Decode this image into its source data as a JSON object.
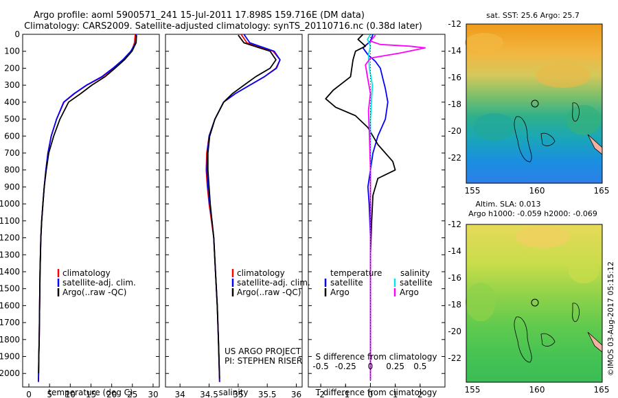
{
  "header": {
    "line1": "Argo profile: aoml 5900571_241 15-Jul-2011 17.898S 159.716E (DM data)",
    "line2": "Climatology: CARS2009. Satellite-adjusted climatology: synTS_20110716.nc (0.38d later)"
  },
  "colors": {
    "climatology": "#ff0000",
    "satellite": "#0000ff",
    "argo": "#000000",
    "salinity_satellite": "#00e5ee",
    "salinity_argo": "#ff00ff"
  },
  "chart_data": [
    {
      "type": "line",
      "title": "temperature profile",
      "xlabel": "temperature (deg C)",
      "ylabel": "pressure",
      "xlim": [
        -1.5,
        31.5
      ],
      "ylim": [
        2080,
        0
      ],
      "xticks": [
        0,
        5,
        10,
        15,
        20,
        25,
        30
      ],
      "yticks": [
        0,
        100,
        200,
        300,
        400,
        500,
        600,
        700,
        800,
        900,
        1000,
        1100,
        1200,
        1300,
        1400,
        1500,
        1600,
        1700,
        1800,
        1900,
        2000
      ],
      "legend": [
        "climatology",
        "satellite-adj. clim.",
        "Argo(..raw -QC)"
      ],
      "series": [
        {
          "name": "climatology",
          "x": [
            25.7,
            25.5,
            24.8,
            23.0,
            20.5,
            17.8,
            14.0,
            11.0,
            8.5,
            6.7,
            5.4,
            4.6,
            4.1,
            3.7,
            3.4,
            3.1,
            2.9,
            2.7,
            2.6,
            2.5,
            2.4,
            2.35,
            2.3
          ],
          "y": [
            0,
            50,
            100,
            150,
            200,
            250,
            300,
            350,
            400,
            500,
            600,
            700,
            800,
            900,
            1000,
            1100,
            1200,
            1400,
            1600,
            1800,
            1900,
            2000,
            2050
          ]
        },
        {
          "name": "satellite-adj. clim.",
          "x": [
            25.9,
            25.8,
            24.6,
            22.7,
            20.3,
            17.6,
            13.9,
            10.9,
            8.4,
            6.7,
            5.4,
            4.6,
            4.1,
            3.7,
            3.4,
            3.1,
            2.9,
            2.7,
            2.6,
            2.5,
            2.4,
            2.35,
            2.3
          ],
          "y": [
            0,
            50,
            100,
            150,
            200,
            250,
            300,
            350,
            400,
            500,
            600,
            700,
            800,
            900,
            1000,
            1100,
            1200,
            1400,
            1600,
            1800,
            1900,
            2000,
            2050
          ]
        },
        {
          "name": "Argo(..raw -QC)",
          "x": [
            26.0,
            25.9,
            24.9,
            23.1,
            20.8,
            18.4,
            15.2,
            12.5,
            9.6,
            7.5,
            6.0,
            4.8,
            4.2,
            3.7,
            3.4,
            3.1,
            2.9,
            2.7,
            2.6,
            2.5,
            2.4,
            2.35
          ],
          "y": [
            5,
            50,
            100,
            150,
            200,
            250,
            300,
            350,
            400,
            500,
            600,
            700,
            800,
            900,
            1000,
            1100,
            1200,
            1400,
            1600,
            1800,
            1900,
            2000
          ]
        }
      ]
    },
    {
      "type": "line",
      "title": "salinity profile",
      "xlabel": "salinity",
      "ylabel": "pressure",
      "xlim": [
        33.75,
        36.1
      ],
      "ylim": [
        2080,
        0
      ],
      "xticks": [
        34,
        34.5,
        35,
        35.5,
        36
      ],
      "xticklabels": [
        "34",
        "34.5",
        "35",
        "35.5",
        "36"
      ],
      "legend": [
        "climatology",
        "satellite-adj. clim.",
        "Argo(..raw -QC)"
      ],
      "annotations": [
        "US ARGO PROJECT",
        "PI: STEPHEN RISER"
      ],
      "series": [
        {
          "name": "climatology",
          "x": [
            35.05,
            35.15,
            35.6,
            35.72,
            35.65,
            35.45,
            35.2,
            34.95,
            34.75,
            34.6,
            34.5,
            34.46,
            34.45,
            34.47,
            34.5,
            34.54,
            34.58,
            34.61,
            34.64,
            34.66,
            34.68
          ],
          "y": [
            0,
            50,
            100,
            150,
            200,
            250,
            300,
            350,
            400,
            500,
            600,
            700,
            800,
            900,
            1000,
            1100,
            1200,
            1400,
            1600,
            1800,
            2050
          ]
        },
        {
          "name": "satellite-adj. clim.",
          "x": [
            35.1,
            35.2,
            35.62,
            35.72,
            35.66,
            35.45,
            35.2,
            34.95,
            34.75,
            34.6,
            34.5,
            34.47,
            34.46,
            34.48,
            34.51,
            34.55,
            34.58,
            34.61,
            34.64,
            34.66,
            34.68
          ],
          "y": [
            0,
            50,
            100,
            150,
            200,
            250,
            300,
            350,
            400,
            500,
            600,
            700,
            800,
            900,
            1000,
            1100,
            1200,
            1400,
            1600,
            1800,
            2050
          ]
        },
        {
          "name": "Argo(..raw -QC)",
          "x": [
            35.0,
            35.1,
            35.55,
            35.65,
            35.55,
            35.3,
            35.1,
            34.9,
            34.75,
            34.6,
            34.51,
            34.48,
            34.48,
            34.5,
            34.52,
            34.55,
            34.58,
            34.61,
            34.64,
            34.66,
            34.68
          ],
          "y": [
            5,
            50,
            100,
            150,
            200,
            250,
            300,
            350,
            400,
            500,
            600,
            700,
            800,
            900,
            1000,
            1100,
            1200,
            1400,
            1600,
            1800,
            2030
          ]
        }
      ]
    },
    {
      "type": "line",
      "title": "difference from climatology",
      "xlabel": "T difference from climatology",
      "x2label": "S difference from climatology",
      "xlim": [
        -2.5,
        3.0
      ],
      "x2lim": [
        -0.625,
        0.75
      ],
      "ylim": [
        2080,
        0
      ],
      "xticks": [
        -2,
        -1,
        0,
        1,
        2
      ],
      "x2ticks": [
        -0.5,
        -0.25,
        0,
        0.25,
        0.5
      ],
      "x2ticklabels": [
        "-0.5",
        "-0.25",
        "0",
        "0.25",
        "0.5"
      ],
      "legend_headers": [
        "temperature",
        "salinity"
      ],
      "legend": [
        "satellite",
        "Argo",
        "satellite",
        "Argo"
      ],
      "series": [
        {
          "name": "T satellite",
          "axis": "T",
          "x": [
            0.1,
            0.0,
            -0.3,
            -0.1,
            0.2,
            0.4,
            0.5,
            0.6,
            0.7,
            0.6,
            0.3,
            0.1,
            0.0,
            -0.1,
            -0.05,
            0.0,
            0.0,
            0.0,
            0.0,
            0.0
          ],
          "y": [
            0,
            40,
            80,
            120,
            160,
            200,
            260,
            320,
            400,
            500,
            600,
            700,
            800,
            900,
            1000,
            1200,
            1400,
            1600,
            1800,
            1900
          ]
        },
        {
          "name": "T Argo",
          "axis": "T",
          "x": [
            -0.3,
            -0.5,
            -0.2,
            -0.6,
            -0.7,
            -0.8,
            -1.5,
            -1.8,
            -1.4,
            -0.6,
            -0.1,
            0.3,
            0.9,
            1.0,
            0.3,
            0.1,
            0.05,
            0.0,
            0.0,
            0.0,
            0.0
          ],
          "y": [
            0,
            30,
            70,
            100,
            150,
            250,
            330,
            380,
            430,
            480,
            550,
            650,
            750,
            800,
            850,
            950,
            1100,
            1300,
            1500,
            1700,
            1900
          ]
        },
        {
          "name": "S satellite",
          "axis": "S",
          "x": [
            0.0,
            -0.03,
            0.0,
            -0.02,
            -0.01,
            0.02,
            0.01,
            0.0,
            0.0,
            0.0,
            0.0,
            0.0,
            0.0,
            0.0
          ],
          "y": [
            0,
            30,
            70,
            120,
            200,
            300,
            400,
            500,
            600,
            800,
            1000,
            1400,
            1800,
            2040
          ]
        },
        {
          "name": "S Argo",
          "axis": "S",
          "x": [
            0.05,
            0.0,
            0.1,
            0.4,
            0.55,
            0.3,
            0.0,
            -0.05,
            -0.03,
            0.0,
            -0.02,
            -0.01,
            0.0,
            0.0,
            0.0,
            0.0,
            0.0
          ],
          "y": [
            5,
            40,
            60,
            70,
            80,
            110,
            140,
            180,
            250,
            350,
            450,
            600,
            800,
            1000,
            1400,
            1800,
            2040
          ]
        }
      ]
    }
  ],
  "maps": {
    "sst": {
      "title": "sat. SST: 25.6 Argo: 25.7",
      "yticklabels": [
        "-12",
        "-14",
        "-16",
        "-18",
        "-20",
        "-22"
      ],
      "xticklabels": [
        "155",
        "160",
        "165"
      ]
    },
    "sla": {
      "title1": "Altim. SLA: 0.013",
      "title2": "Argo h1000: -0.059 h2000: -0.069",
      "yticklabels": [
        "-12",
        "-14",
        "-16",
        "-18",
        "-20",
        "-22"
      ],
      "xticklabels": [
        "155",
        "160",
        "165"
      ]
    },
    "credit": "©IMOS 03-Aug-2017 05:15:12"
  }
}
